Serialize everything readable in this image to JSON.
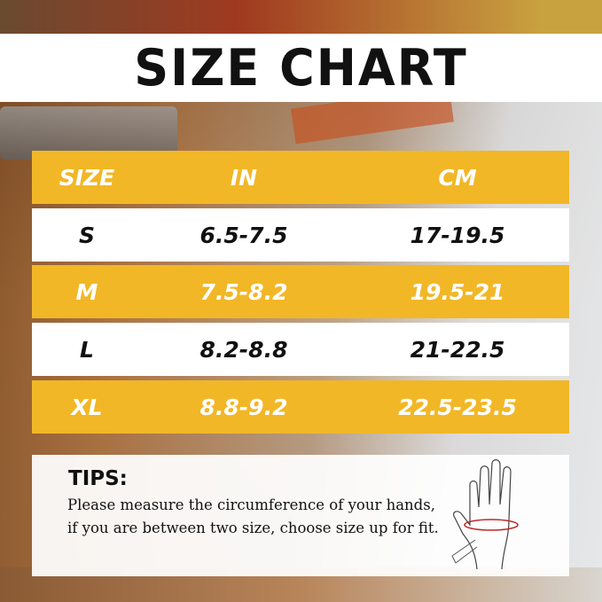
{
  "title": "SIZE CHART",
  "table": {
    "headers": [
      "SIZE",
      "IN",
      "CM"
    ],
    "rows": [
      [
        "S",
        "6.5-7.5",
        "17-19.5"
      ],
      [
        "M",
        "7.5-8.2",
        "19.5-21"
      ],
      [
        "L",
        "8.2-8.8",
        "21-22.5"
      ],
      [
        "XL",
        "8.8-9.2",
        "22.5-23.5"
      ]
    ]
  },
  "tips": {
    "heading": "TIPS:",
    "text": "Please measure the circumference of your hands, if you are between two size, choose size up for fit."
  },
  "colors": {
    "accent": "#f2b726",
    "row_alt": "#ffffff",
    "measure_line": "#c0282a"
  }
}
